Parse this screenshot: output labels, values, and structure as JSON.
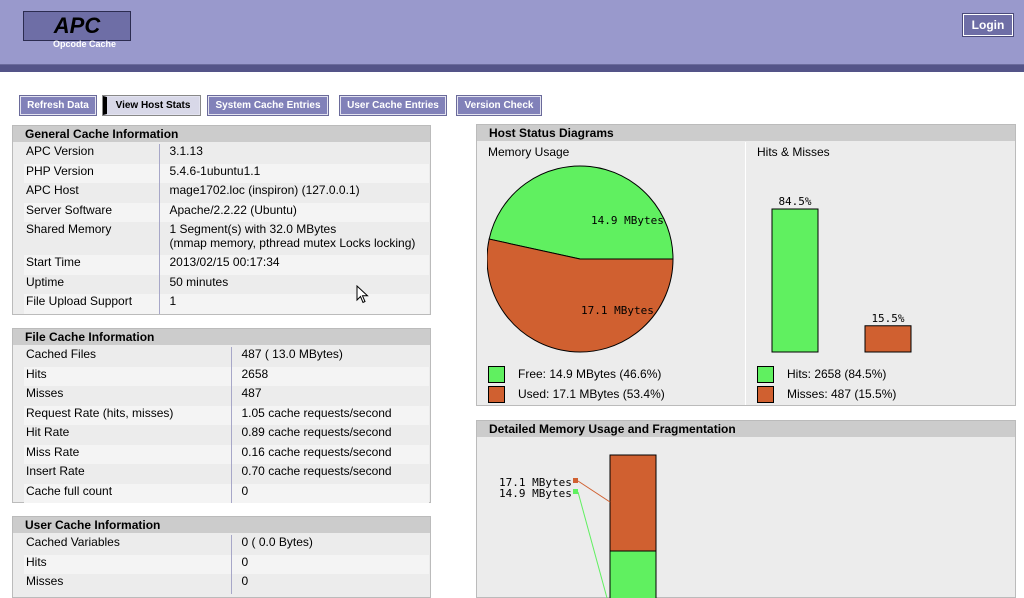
{
  "header": {
    "logo_title": "APC",
    "logo_subtitle": "Opcode Cache",
    "login_label": "Login"
  },
  "nav": {
    "items": [
      "Refresh Data",
      "View Host Stats",
      "System Cache Entries",
      "User Cache Entries",
      "Version Check"
    ],
    "active": "View Host Stats"
  },
  "general": {
    "title": "General Cache Information",
    "rows": [
      {
        "k": "APC Version",
        "v": "3.1.13"
      },
      {
        "k": "PHP Version",
        "v": "5.4.6-1ubuntu1.1"
      },
      {
        "k": "APC Host",
        "v": "mage1702.loc (inspiron) (127.0.0.1)"
      },
      {
        "k": "Server Software",
        "v": "Apache/2.2.22 (Ubuntu)"
      },
      {
        "k": "Shared Memory",
        "v": "1 Segment(s) with 32.0 MBytes",
        "v2": "(mmap memory, pthread mutex Locks locking)"
      },
      {
        "k": "Start Time",
        "v": "2013/02/15 00:17:34"
      },
      {
        "k": "Uptime",
        "v": "50 minutes"
      },
      {
        "k": "File Upload Support",
        "v": "1"
      }
    ]
  },
  "file_cache": {
    "title": "File Cache Information",
    "rows": [
      {
        "k": "Cached Files",
        "v": "487 ( 13.0 MBytes)"
      },
      {
        "k": "Hits",
        "v": "2658"
      },
      {
        "k": "Misses",
        "v": "487"
      },
      {
        "k": "Request Rate (hits, misses)",
        "v": "1.05 cache requests/second"
      },
      {
        "k": "Hit Rate",
        "v": "0.89 cache requests/second"
      },
      {
        "k": "Miss Rate",
        "v": "0.16 cache requests/second"
      },
      {
        "k": "Insert Rate",
        "v": "0.70 cache requests/second"
      },
      {
        "k": "Cache full count",
        "v": "0"
      }
    ]
  },
  "user_cache": {
    "title": "User Cache Information",
    "rows": [
      {
        "k": "Cached Variables",
        "v": "0 ( 0.0 Bytes)"
      },
      {
        "k": "Hits",
        "v": "0"
      },
      {
        "k": "Misses",
        "v": "0"
      }
    ]
  },
  "host_status": {
    "title": "Host Status Diagrams",
    "memory_label": "Memory Usage",
    "hits_label": "Hits & Misses",
    "legend": {
      "free": "Free: 14.9 MBytes (46.6%)",
      "used": "Used: 17.1 MBytes (53.4%)",
      "hits": "Hits: 2658 (84.5%)",
      "misses": "Misses: 487 (15.5%)"
    }
  },
  "fragmentation": {
    "title": "Detailed Memory Usage and Fragmentation",
    "labels": [
      "17.1 MBytes",
      "14.9 MBytes"
    ]
  },
  "colors": {
    "free": "#60f060",
    "used": "#d06030",
    "header": "#9999cc",
    "header_dark": "#545488"
  },
  "chart_data": [
    {
      "type": "pie",
      "categories": [
        "Free",
        "Used"
      ],
      "values": [
        14.9,
        17.1
      ],
      "data_labels": [
        "14.9 MBytes",
        "17.1 MBytes"
      ],
      "title": "Memory Usage"
    },
    {
      "type": "bar",
      "categories": [
        "Hits",
        "Misses"
      ],
      "values": [
        84.5,
        15.5
      ],
      "data_labels": [
        "84.5%",
        "15.5%"
      ],
      "title": "Hits & Misses"
    }
  ]
}
